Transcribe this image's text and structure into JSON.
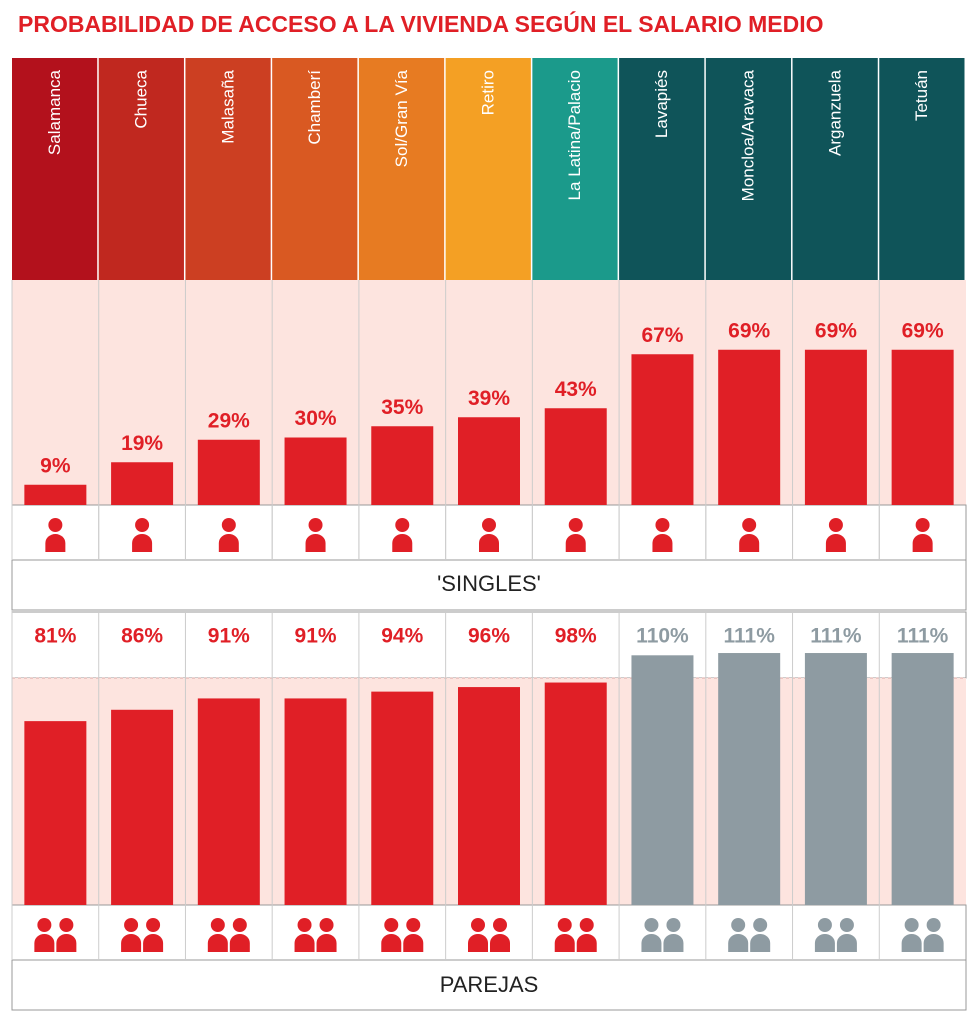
{
  "chart_data": {
    "type": "bar",
    "title": "PROBABILIDAD DE ACCESO A LA VIVIENDA SEGÚN EL SALARIO MEDIO",
    "categories": [
      "Salamanca",
      "Chueca",
      "Malasaña",
      "Chamberí",
      "Sol/Gran Vía",
      "Retiro",
      "La Latina/Palacio",
      "Lavapiés",
      "Moncloa/Aravaca",
      "Arganzuela",
      "Tetuán"
    ],
    "header_colors": [
      "#b3111c",
      "#c0281f",
      "#cc3f22",
      "#d95922",
      "#e77b22",
      "#f4a024",
      "#1b9a8b",
      "#0f5459",
      "#0f5459",
      "#0f5459",
      "#0f5459"
    ],
    "ylim": [
      0,
      100
    ],
    "series": [
      {
        "name": "'SINGLES'",
        "color": "#e01f26",
        "values": [
          9,
          19,
          29,
          30,
          35,
          39,
          43,
          67,
          69,
          69,
          69
        ],
        "value_labels": [
          "9%",
          "19%",
          "29%",
          "30%",
          "35%",
          "39%",
          "43%",
          "67%",
          "69%",
          "69%",
          "69%"
        ]
      },
      {
        "name": "PAREJAS",
        "colors": [
          "#e01f26",
          "#e01f26",
          "#e01f26",
          "#e01f26",
          "#e01f26",
          "#e01f26",
          "#e01f26",
          "#8e9ba2",
          "#8e9ba2",
          "#8e9ba2",
          "#8e9ba2"
        ],
        "values": [
          81,
          86,
          91,
          91,
          94,
          96,
          98,
          110,
          111,
          111,
          111
        ],
        "value_labels": [
          "81%",
          "86%",
          "91%",
          "91%",
          "94%",
          "96%",
          "98%",
          "110%",
          "111%",
          "111%",
          "111%"
        ]
      }
    ]
  }
}
